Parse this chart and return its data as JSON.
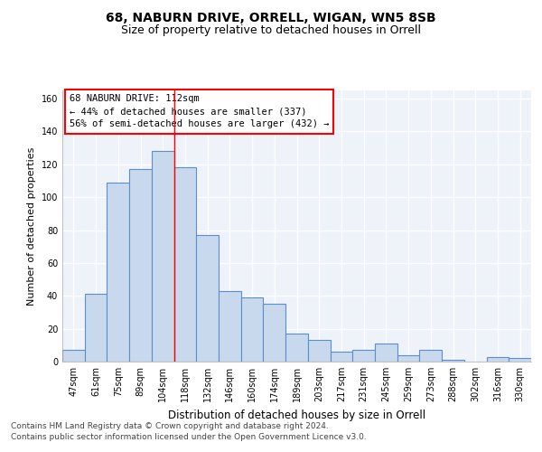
{
  "title1": "68, NABURN DRIVE, ORRELL, WIGAN, WN5 8SB",
  "title2": "Size of property relative to detached houses in Orrell",
  "xlabel": "Distribution of detached houses by size in Orrell",
  "ylabel": "Number of detached properties",
  "categories": [
    "47sqm",
    "61sqm",
    "75sqm",
    "89sqm",
    "104sqm",
    "118sqm",
    "132sqm",
    "146sqm",
    "160sqm",
    "174sqm",
    "189sqm",
    "203sqm",
    "217sqm",
    "231sqm",
    "245sqm",
    "259sqm",
    "273sqm",
    "288sqm",
    "302sqm",
    "316sqm",
    "330sqm"
  ],
  "values": [
    7,
    41,
    109,
    117,
    128,
    118,
    77,
    43,
    39,
    35,
    17,
    13,
    6,
    7,
    11,
    4,
    7,
    1,
    0,
    3,
    2
  ],
  "bar_color": "#c9d9ed",
  "bar_edge_color": "#5b8fc9",
  "red_line_x": 4.5,
  "ylim": [
    0,
    165
  ],
  "yticks": [
    0,
    20,
    40,
    60,
    80,
    100,
    120,
    140,
    160
  ],
  "annotation_title": "68 NABURN DRIVE: 112sqm",
  "annotation_line1": "← 44% of detached houses are smaller (337)",
  "annotation_line2": "56% of semi-detached houses are larger (432) →",
  "footer1": "Contains HM Land Registry data © Crown copyright and database right 2024.",
  "footer2": "Contains public sector information licensed under the Open Government Licence v3.0.",
  "background_color": "#eef2f9",
  "grid_color": "#ffffff",
  "title1_fontsize": 10,
  "title2_fontsize": 9,
  "xlabel_fontsize": 8.5,
  "ylabel_fontsize": 8,
  "tick_fontsize": 7,
  "footer_fontsize": 6.5,
  "ann_fontsize": 7.5
}
